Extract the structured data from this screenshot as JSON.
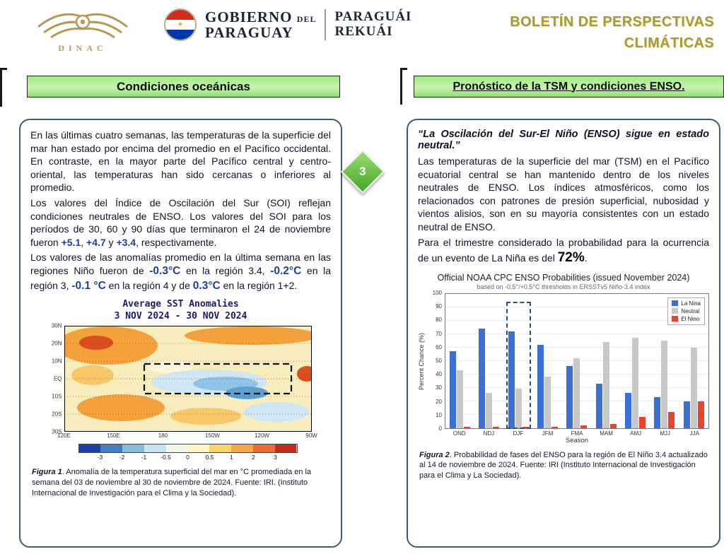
{
  "header": {
    "dinac_label": "DINAC",
    "gov_gobierno": "GOBIERNO",
    "gov_del": "DEL",
    "gov_paraguay": "PARAGUAY",
    "gov_paraguai": "PARAGUÁI",
    "gov_rekuai": "REKUÁI",
    "title_line1": "BOLETÍN DE PERSPECTIVAS",
    "title_line2": "CLIMÁTICAS"
  },
  "page_marker": "3",
  "left": {
    "title": "Condiciones oceánicas",
    "p1": "En las últimas cuatro semanas, las temperaturas de la superficie del mar han estado por encima del promedio en el Pacífico occidental. En contraste, en la mayor parte del Pacífico central y centro-oriental, las temperaturas han sido cercanas o inferiores al promedio.",
    "p2": [
      "Los valores del Índice de Oscilación del Sur (SOI) reflejan condiciones neutrales de ENSO. Los valores del SOI para los períodos de 30, 60 y 90 días que terminaron el 24 de noviembre fueron ",
      "+5.1",
      ", ",
      "+4.7",
      " y ",
      "+3.4",
      ", respectivamente."
    ],
    "p3": [
      "Los valores de las anomalías promedio en la última semana en las regiones Niño fueron de ",
      "-0.3°C",
      " en la región 3.4, ",
      "-0.2°C",
      " en la región 3, ",
      "-0.1 °C",
      " en la región 4 y de ",
      "0.3°C",
      " en la región 1+2."
    ],
    "figure1": {
      "title_line1": "Average SST Anomalies",
      "title_line2": "3 NOV 2024 - 30 NOV 2024",
      "lat_labels": [
        "30N",
        "20N",
        "10N",
        "EQ",
        "10S",
        "20S",
        "30S"
      ],
      "lon_labels": [
        "120E",
        "150E",
        "180",
        "150W",
        "120W",
        "90W"
      ],
      "colorbar_ticks": [
        "-3",
        "-2",
        "-1",
        "-0.5",
        "0",
        "0.5",
        "1",
        "2",
        "3"
      ],
      "colorbar_colors": [
        "#1c3fa8",
        "#3f7fc1",
        "#86bcdc",
        "#c8e4f0",
        "#f2f8e8",
        "#fdf5c2",
        "#f8d568",
        "#f9a648",
        "#ef6a32",
        "#c92a1a"
      ],
      "caption_label": "Figura 1",
      "caption_text": ". Anomalía de la temperatura superficial del mar en °C promediada en la semana del 03 de noviembre al 30 de noviembre de 2024. Fuente: IRI. (Instituto Internacional de Investigación para el Clima y la Sociedad)."
    }
  },
  "right": {
    "title": "Pronóstico de la TSM y condiciones ENSO.",
    "quote": "“La Oscilación del Sur-El Niño (ENSO) sigue en estado neutral.”",
    "p1": "Las temperaturas de la superficie del mar (TSM) en el Pacífico ecuatorial central se han mantenido dentro de los niveles neutrales de ENSO. Los índices atmosféricos, como los relacionados con patrones de presión superficial, nubosidad y vientos alisios, son en su mayoría consistentes con un estado neutral de ENSO.",
    "p2_pre": "Para el trimestre considerado la probabilidad para la ocurrencia de un evento de La Niña es del ",
    "p2_value": "72%",
    "p2_post": ".",
    "caption_label": "Figura 2",
    "caption_text": ". Probabilidad de fases del ENSO para la región de El Niño 3.4 actualizado al 14 de noviembre de 2024. Fuente: IRI (Instituto Internacional de Investigación para el Clima y La Sociedad)."
  },
  "chart_data": {
    "type": "bar",
    "title": "Official NOAA CPC ENSO Probabilities (issued November 2024)",
    "subtitle": "based on -0.5°/+0.5°C thresholds in ERSSTv5 Niño-3.4 index",
    "xlabel": "Season",
    "ylabel": "Percent Chance (%)",
    "ylim": [
      0,
      100
    ],
    "ytick_step": 10,
    "grid": true,
    "legend_position": "top-right",
    "categories": [
      "OND",
      "NDJ",
      "DJF",
      "JFM",
      "FMA",
      "MAM",
      "AMJ",
      "MJJ",
      "JJA"
    ],
    "series": [
      {
        "name": "La Nina",
        "color": "#3a6fd8",
        "values": [
          57,
          74,
          72,
          62,
          46,
          33,
          26,
          23,
          20
        ]
      },
      {
        "name": "Neutral",
        "color": "#c8c8c8",
        "values": [
          43,
          26,
          29,
          38,
          52,
          64,
          67,
          65,
          60
        ]
      },
      {
        "name": "El Nino",
        "color": "#e8432e",
        "values": [
          1,
          1,
          1,
          1,
          2,
          3,
          8,
          12,
          20
        ]
      }
    ],
    "highlight_category": "DJF"
  }
}
